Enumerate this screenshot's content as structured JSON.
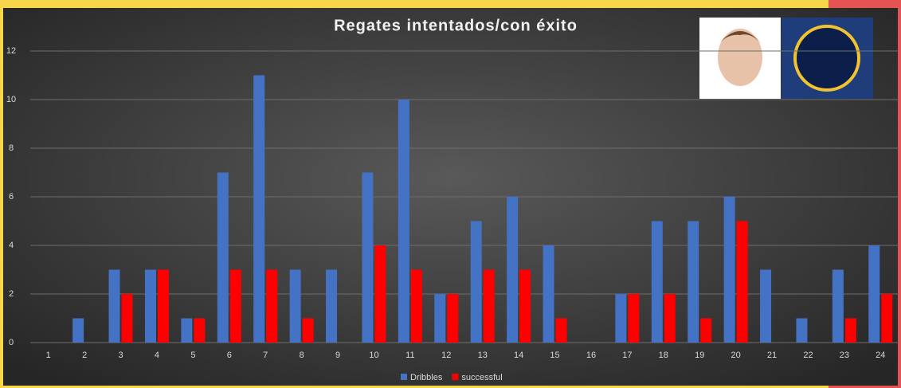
{
  "chart_data": {
    "type": "bar",
    "title": "Regates intentados/con éxito",
    "categories": [
      "1",
      "2",
      "3",
      "4",
      "5",
      "6",
      "7",
      "8",
      "9",
      "10",
      "11",
      "12",
      "13",
      "14",
      "15",
      "16",
      "17",
      "18",
      "19",
      "20",
      "21",
      "22",
      "23",
      "24"
    ],
    "series": [
      {
        "name": "Dribbles",
        "color": "#4472c4",
        "values": [
          0,
          1,
          3,
          3,
          1,
          7,
          11,
          3,
          3,
          7,
          10,
          2,
          5,
          6,
          4,
          0,
          2,
          5,
          5,
          6,
          3,
          1,
          3,
          4
        ]
      },
      {
        "name": "successful",
        "color": "#ff0000",
        "values": [
          0,
          0,
          2,
          3,
          1,
          3,
          3,
          1,
          0,
          4,
          3,
          2,
          3,
          3,
          1,
          0,
          2,
          2,
          1,
          5,
          0,
          0,
          1,
          2
        ]
      }
    ],
    "ylim": [
      0,
      12
    ],
    "yticks": [
      0,
      2,
      4,
      6,
      8,
      10,
      12
    ],
    "grid": true,
    "legend": "bottom"
  }
}
